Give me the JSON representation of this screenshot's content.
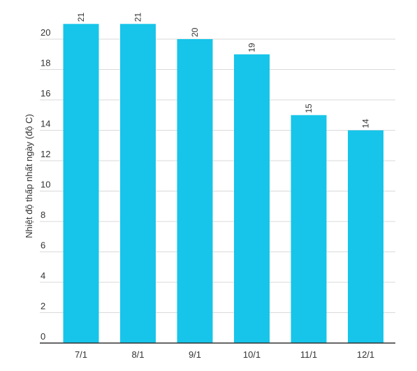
{
  "chart_data": {
    "type": "bar",
    "title": "",
    "xlabel": "",
    "ylabel": "Nhiệt độ thấp nhất ngày (độ C)",
    "categories": [
      "7/1",
      "8/1",
      "9/1",
      "10/1",
      "11/1",
      "12/1"
    ],
    "values": [
      21,
      21,
      20,
      19,
      15,
      14
    ],
    "ylim": [
      0,
      20
    ],
    "yticks": [
      0,
      2,
      4,
      6,
      8,
      10,
      12,
      14,
      16,
      18,
      20
    ],
    "bar_color": "#16c5e9",
    "grid": true,
    "data_labels": true
  }
}
